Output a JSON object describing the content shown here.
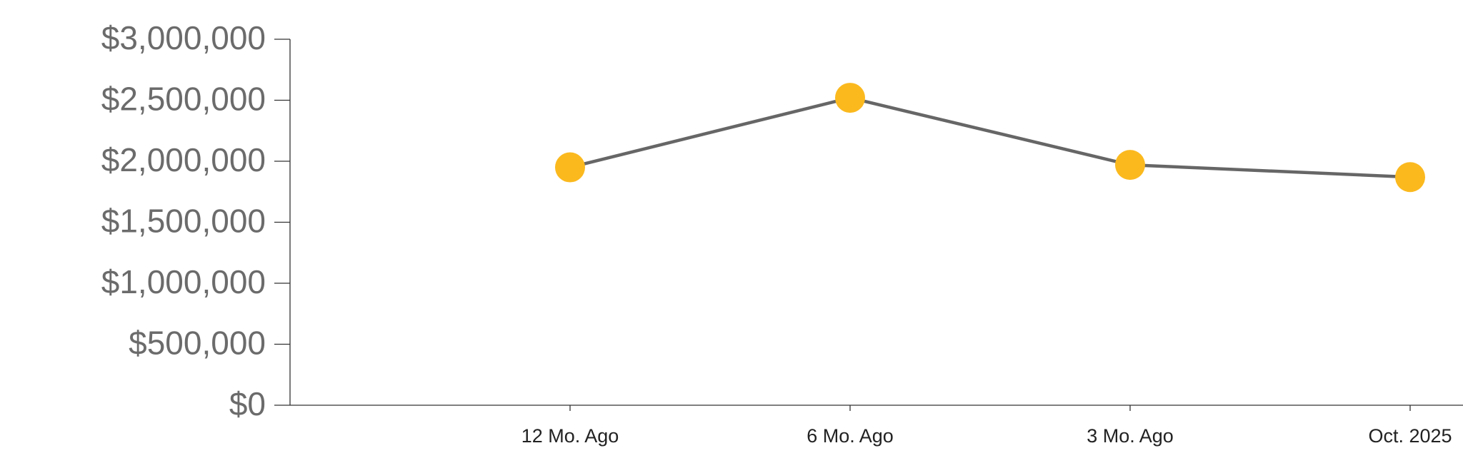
{
  "chart_data": {
    "type": "line",
    "categories": [
      "12 Mo. Ago",
      "6 Mo. Ago",
      "3 Mo. Ago",
      "Oct. 2025"
    ],
    "series": [
      {
        "color": "#fbb91e",
        "values": [
          1950000,
          2520000,
          1970000,
          1870000
        ]
      }
    ],
    "ylim": [
      0,
      3000000
    ],
    "yticks": [
      0,
      {
        "value": 0,
        "label": "$0"
      },
      {
        "value": 500000,
        "label": "$500,000"
      },
      {
        "value": 1000000,
        "label": "$1,000,000"
      },
      {
        "value": 1500000,
        "label": "$1,500,000"
      },
      {
        "value": 2000000,
        "label": "$2,000,000"
      },
      {
        "value": 2500000,
        "label": "$2,500,000"
      },
      {
        "value": 3000000,
        "label": "$3,000,000"
      }
    ],
    "grid": false
  }
}
